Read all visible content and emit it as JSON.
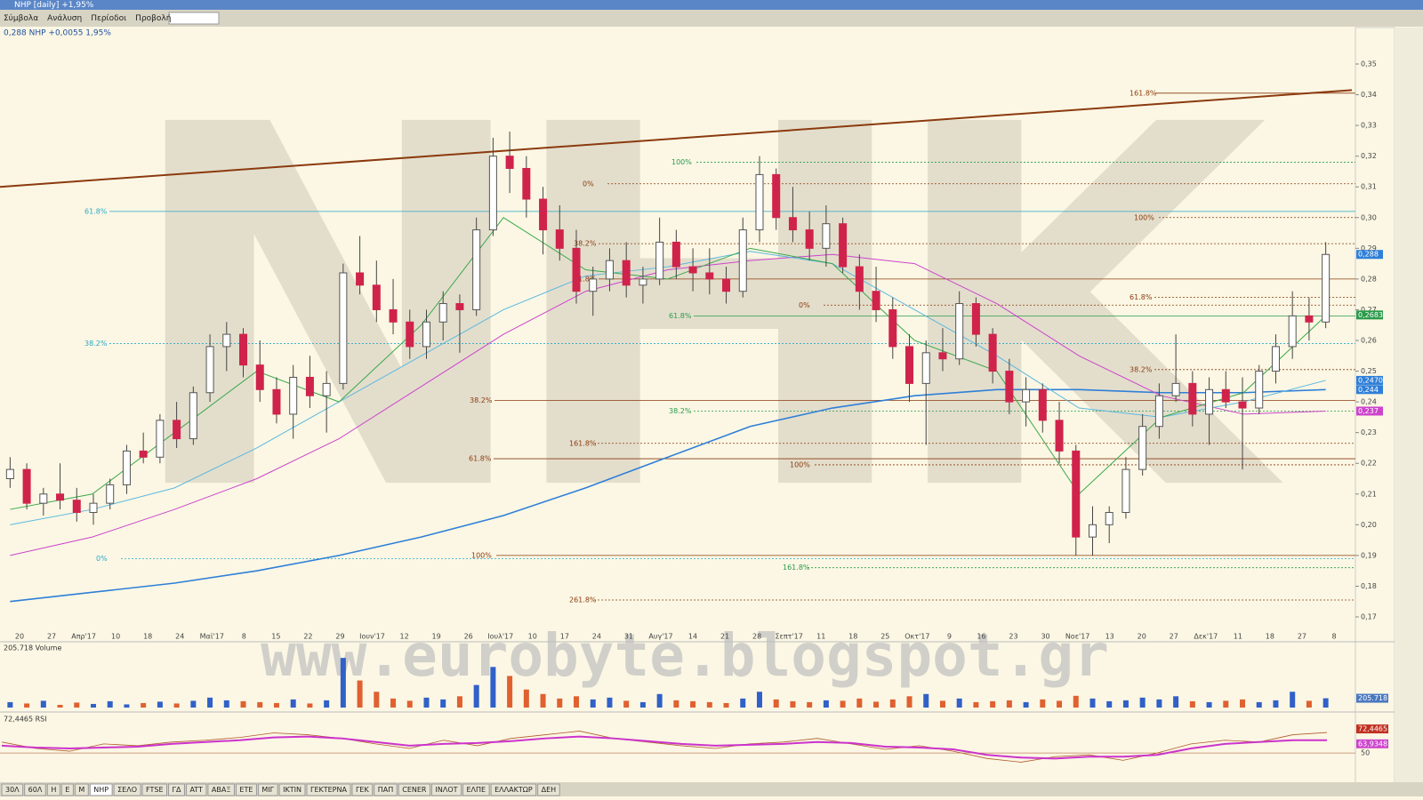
{
  "window": {
    "title": "NHP [daily] +1,95%"
  },
  "menu": [
    "Σύμβολα",
    "Ανάλυση",
    "Περίοδοι",
    "Προβολή"
  ],
  "chart_data": {
    "type": "candlestick",
    "header": "0,288 NHP +0,0055 1,95%",
    "watermark_logo": "NHK",
    "watermark_url": "www.eurobyte.blogspot.gr",
    "x_labels": [
      "20",
      "27",
      "Απρ'17",
      "10",
      "18",
      "24",
      "Μαϊ'17",
      "8",
      "15",
      "22",
      "29",
      "Ιουν'17",
      "12",
      "19",
      "26",
      "Ιουλ'17",
      "10",
      "17",
      "24",
      "31",
      "Αυγ'17",
      "14",
      "21",
      "28",
      "Σεπτ'17",
      "11",
      "18",
      "25",
      "Οκτ'17",
      "9",
      "16",
      "23",
      "30",
      "Νοε'17",
      "13",
      "20",
      "27",
      "Δεκ'17",
      "11",
      "18",
      "27",
      "8"
    ],
    "ylim": [
      0.17,
      0.35
    ],
    "yticks": [
      {
        "value": 0.17,
        "label": "0,17"
      },
      {
        "value": 0.18,
        "label": "0,18"
      },
      {
        "value": 0.19,
        "label": "0,19"
      },
      {
        "value": 0.2,
        "label": "0,20"
      },
      {
        "value": 0.21,
        "label": "0,21"
      },
      {
        "value": 0.22,
        "label": "0,22"
      },
      {
        "value": 0.23,
        "label": "0,23"
      },
      {
        "value": 0.24,
        "label": "0,24"
      },
      {
        "value": 0.25,
        "label": "0,25"
      },
      {
        "value": 0.26,
        "label": "0,26"
      },
      {
        "value": 0.27,
        "label": "0,27"
      },
      {
        "value": 0.28,
        "label": "0,28"
      },
      {
        "value": 0.29,
        "label": "0,29"
      },
      {
        "value": 0.3,
        "label": "0,30"
      },
      {
        "value": 0.31,
        "label": "0,31"
      },
      {
        "value": 0.32,
        "label": "0,32"
      },
      {
        "value": 0.33,
        "label": "0,33"
      },
      {
        "value": 0.34,
        "label": "0,34"
      },
      {
        "value": 0.35,
        "label": "0,35"
      }
    ],
    "up_color": "#ffffff",
    "down_color": "#d0234b",
    "candles": [
      [
        0.215,
        0.222,
        0.212,
        0.218
      ],
      [
        0.218,
        0.22,
        0.205,
        0.207
      ],
      [
        0.207,
        0.212,
        0.203,
        0.21
      ],
      [
        0.21,
        0.22,
        0.205,
        0.208
      ],
      [
        0.208,
        0.212,
        0.201,
        0.204
      ],
      [
        0.204,
        0.21,
        0.2,
        0.207
      ],
      [
        0.207,
        0.215,
        0.205,
        0.213
      ],
      [
        0.213,
        0.226,
        0.21,
        0.224
      ],
      [
        0.224,
        0.23,
        0.22,
        0.222
      ],
      [
        0.222,
        0.236,
        0.22,
        0.234
      ],
      [
        0.234,
        0.24,
        0.225,
        0.228
      ],
      [
        0.228,
        0.245,
        0.226,
        0.243
      ],
      [
        0.243,
        0.262,
        0.24,
        0.258
      ],
      [
        0.258,
        0.266,
        0.25,
        0.262
      ],
      [
        0.262,
        0.264,
        0.248,
        0.252
      ],
      [
        0.252,
        0.26,
        0.24,
        0.244
      ],
      [
        0.244,
        0.248,
        0.233,
        0.236
      ],
      [
        0.236,
        0.252,
        0.228,
        0.248
      ],
      [
        0.248,
        0.255,
        0.238,
        0.242
      ],
      [
        0.242,
        0.25,
        0.23,
        0.246
      ],
      [
        0.246,
        0.285,
        0.244,
        0.282
      ],
      [
        0.282,
        0.294,
        0.275,
        0.278
      ],
      [
        0.278,
        0.286,
        0.266,
        0.27
      ],
      [
        0.27,
        0.28,
        0.262,
        0.266
      ],
      [
        0.266,
        0.27,
        0.254,
        0.258
      ],
      [
        0.258,
        0.27,
        0.254,
        0.266
      ],
      [
        0.266,
        0.276,
        0.26,
        0.272
      ],
      [
        0.272,
        0.275,
        0.256,
        0.27
      ],
      [
        0.27,
        0.3,
        0.268,
        0.296
      ],
      [
        0.296,
        0.326,
        0.294,
        0.32
      ],
      [
        0.32,
        0.328,
        0.308,
        0.316
      ],
      [
        0.316,
        0.32,
        0.3,
        0.306
      ],
      [
        0.306,
        0.31,
        0.288,
        0.296
      ],
      [
        0.296,
        0.304,
        0.286,
        0.29
      ],
      [
        0.29,
        0.296,
        0.272,
        0.276
      ],
      [
        0.276,
        0.284,
        0.268,
        0.28
      ],
      [
        0.28,
        0.29,
        0.276,
        0.286
      ],
      [
        0.286,
        0.292,
        0.274,
        0.278
      ],
      [
        0.278,
        0.284,
        0.272,
        0.28
      ],
      [
        0.28,
        0.3,
        0.278,
        0.292
      ],
      [
        0.292,
        0.296,
        0.28,
        0.284
      ],
      [
        0.284,
        0.29,
        0.276,
        0.282
      ],
      [
        0.282,
        0.29,
        0.275,
        0.28
      ],
      [
        0.28,
        0.284,
        0.272,
        0.276
      ],
      [
        0.276,
        0.3,
        0.274,
        0.296
      ],
      [
        0.296,
        0.32,
        0.292,
        0.314
      ],
      [
        0.314,
        0.316,
        0.296,
        0.3
      ],
      [
        0.3,
        0.31,
        0.292,
        0.296
      ],
      [
        0.296,
        0.302,
        0.286,
        0.29
      ],
      [
        0.29,
        0.304,
        0.284,
        0.298
      ],
      [
        0.298,
        0.3,
        0.282,
        0.284
      ],
      [
        0.284,
        0.288,
        0.27,
        0.276
      ],
      [
        0.276,
        0.284,
        0.266,
        0.27
      ],
      [
        0.27,
        0.274,
        0.254,
        0.258
      ],
      [
        0.258,
        0.262,
        0.24,
        0.246
      ],
      [
        0.246,
        0.26,
        0.226,
        0.256
      ],
      [
        0.256,
        0.264,
        0.25,
        0.254
      ],
      [
        0.254,
        0.276,
        0.252,
        0.272
      ],
      [
        0.272,
        0.274,
        0.258,
        0.262
      ],
      [
        0.262,
        0.264,
        0.246,
        0.25
      ],
      [
        0.25,
        0.254,
        0.236,
        0.24
      ],
      [
        0.24,
        0.248,
        0.232,
        0.244
      ],
      [
        0.244,
        0.246,
        0.23,
        0.234
      ],
      [
        0.234,
        0.24,
        0.22,
        0.224
      ],
      [
        0.224,
        0.226,
        0.19,
        0.196
      ],
      [
        0.196,
        0.206,
        0.19,
        0.2
      ],
      [
        0.2,
        0.206,
        0.194,
        0.204
      ],
      [
        0.204,
        0.222,
        0.202,
        0.218
      ],
      [
        0.218,
        0.236,
        0.216,
        0.232
      ],
      [
        0.232,
        0.246,
        0.228,
        0.242
      ],
      [
        0.242,
        0.262,
        0.24,
        0.246
      ],
      [
        0.246,
        0.25,
        0.232,
        0.236
      ],
      [
        0.236,
        0.248,
        0.226,
        0.244
      ],
      [
        0.244,
        0.25,
        0.238,
        0.24
      ],
      [
        0.24,
        0.248,
        0.218,
        0.238
      ],
      [
        0.238,
        0.252,
        0.236,
        0.25
      ],
      [
        0.25,
        0.262,
        0.246,
        0.258
      ],
      [
        0.258,
        0.276,
        0.254,
        0.268
      ],
      [
        0.268,
        0.274,
        0.26,
        0.266
      ],
      [
        0.266,
        0.292,
        0.264,
        0.288
      ]
    ],
    "averages": [
      {
        "color": "#2f7fd8",
        "values": [
          0.175,
          0.178,
          0.181,
          0.185,
          0.19,
          0.196,
          0.203,
          0.212,
          0.222,
          0.232,
          0.238,
          0.242,
          0.244,
          0.244,
          0.243,
          0.243,
          0.244
        ]
      },
      {
        "color": "#cc44cc",
        "values": [
          0.19,
          0.196,
          0.205,
          0.215,
          0.228,
          0.245,
          0.262,
          0.276,
          0.283,
          0.286,
          0.288,
          0.285,
          0.272,
          0.255,
          0.242,
          0.236,
          0.237
        ]
      },
      {
        "color": "#5bb8e0",
        "values": [
          0.2,
          0.205,
          0.212,
          0.225,
          0.24,
          0.255,
          0.27,
          0.281,
          0.284,
          0.289,
          0.285,
          0.27,
          0.255,
          0.238,
          0.235,
          0.24,
          0.247
        ]
      },
      {
        "color": "#3aa84a",
        "values": [
          0.205,
          0.21,
          0.23,
          0.25,
          0.24,
          0.265,
          0.3,
          0.283,
          0.28,
          0.29,
          0.285,
          0.26,
          0.25,
          0.21,
          0.235,
          0.243,
          0.268
        ]
      }
    ],
    "trend_line": {
      "color": "#8b3a0e",
      "values": [
        0.31,
        0.3415
      ]
    },
    "fib_levels": [
      {
        "label": "161.8%",
        "value": 0.3405,
        "color": "#8b3a0e"
      },
      {
        "label": "100%",
        "value": 0.318,
        "color": "#2a9a4a"
      },
      {
        "label": "0%",
        "value": 0.311,
        "color": "#8b3a0e"
      },
      {
        "label": "61.8%",
        "value": 0.302,
        "color": "#2aa8c8"
      },
      {
        "label": "100%",
        "value": 0.3,
        "color": "#8b3a0e"
      },
      {
        "label": "38.2%",
        "value": 0.2915,
        "color": "#8b3a0e"
      },
      {
        "label": "61.8%",
        "value": 0.28,
        "color": "#8b3a0e"
      },
      {
        "label": "61.8%",
        "value": 0.274,
        "color": "#8b3a0e"
      },
      {
        "label": "0%",
        "value": 0.2715,
        "color": "#8b3a0e"
      },
      {
        "label": "61.8%",
        "value": 0.268,
        "color": "#2a9a4a"
      },
      {
        "label": "38.2%",
        "value": 0.259,
        "color": "#2aa8c8"
      },
      {
        "label": "38.2%",
        "value": 0.2505,
        "color": "#8b3a0e"
      },
      {
        "label": "38.2%",
        "value": 0.2405,
        "color": "#8b3a0e"
      },
      {
        "label": "38.2%",
        "value": 0.237,
        "color": "#2a9a4a"
      },
      {
        "label": "161.8%",
        "value": 0.2265,
        "color": "#8b3a0e"
      },
      {
        "label": "61.8%",
        "value": 0.2215,
        "color": "#8b3a0e"
      },
      {
        "label": "100%",
        "value": 0.2195,
        "color": "#8b3a0e"
      },
      {
        "label": "0%",
        "value": 0.189,
        "color": "#2aa8c8"
      },
      {
        "label": "100%",
        "value": 0.19,
        "color": "#8b3a0e"
      },
      {
        "label": "161.8%",
        "value": 0.186,
        "color": "#2a9a4a"
      },
      {
        "label": "261.8%",
        "value": 0.1755,
        "color": "#8b3a0e"
      }
    ],
    "price_tags": [
      {
        "label": "0,288",
        "value": 0.288,
        "color": "#2f7fd8"
      },
      {
        "label": "0,2683",
        "value": 0.2683,
        "color": "#2a9a4a"
      },
      {
        "label": "0,2470",
        "value": 0.247,
        "color": "#2f7fd8"
      },
      {
        "label": "0,244",
        "value": 0.244,
        "color": "#2f7fd8"
      },
      {
        "label": "0,237",
        "value": 0.237,
        "color": "#cc44cc"
      }
    ],
    "volume_header": "205.718 Volume",
    "volume_tag": {
      "label": "205.718",
      "value": 205718
    },
    "volume_ylim": [
      0,
      1300000
    ],
    "volume": [
      120000,
      90000,
      150000,
      60000,
      110000,
      80000,
      140000,
      70000,
      100000,
      130000,
      90000,
      150000,
      220000,
      160000,
      140000,
      120000,
      100000,
      180000,
      90000,
      160000,
      1100000,
      600000,
      350000,
      200000,
      150000,
      220000,
      180000,
      250000,
      500000,
      900000,
      700000,
      400000,
      300000,
      200000,
      250000,
      180000,
      220000,
      150000,
      120000,
      300000,
      160000,
      140000,
      120000,
      100000,
      200000,
      350000,
      180000,
      140000,
      120000,
      160000,
      150000,
      200000,
      130000,
      180000,
      250000,
      300000,
      150000,
      200000,
      120000,
      140000,
      160000,
      120000,
      180000,
      150000,
      260000,
      200000,
      140000,
      160000,
      220000,
      180000,
      250000,
      140000,
      120000,
      150000,
      180000,
      120000,
      160000,
      350000,
      150000,
      205718
    ],
    "rsi_header": "72,4465 RSI",
    "rsi_ylim": [
      20,
      90
    ],
    "rsi_ticks": [
      50
    ],
    "rsi_tags": [
      {
        "label": "72,4465",
        "value": 72.4465,
        "color": "#c03020"
      },
      {
        "label": "63,9348",
        "value": 63.9348,
        "color": "#cc44cc"
      }
    ],
    "rsi": [
      62,
      55,
      52,
      60,
      58,
      62,
      64,
      67,
      72,
      70,
      66,
      60,
      55,
      64,
      58,
      66,
      70,
      74,
      66,
      62,
      58,
      55,
      60,
      62,
      66,
      60,
      54,
      58,
      52,
      44,
      40,
      46,
      48,
      42,
      50,
      60,
      64,
      62,
      70,
      72.4465
    ],
    "rsi_signal": [
      58,
      56,
      55,
      56,
      57,
      60,
      62,
      64,
      67,
      68,
      66,
      62,
      58,
      60,
      61,
      63,
      66,
      68,
      66,
      63,
      60,
      58,
      59,
      60,
      62,
      61,
      57,
      56,
      54,
      48,
      45,
      44,
      46,
      46,
      48,
      55,
      60,
      62,
      64,
      63.9348
    ]
  },
  "tabs": [
    "30Λ",
    "60Λ",
    "H",
    "E",
    "M",
    "NHP",
    "ΣΕΛΟ",
    "FTSE",
    "ΓΔ",
    "ATT",
    "ΑΒΑΞ",
    "ΕΤΕ",
    "ΜΙΓ",
    "ΙΚΤΙΝ",
    "ΓΕΚΤΕΡΝΑ",
    "ΓΕΚ",
    "ΠΑΠ",
    "CENER",
    "ΙΝΛΟΤ",
    "ΕΛΠΕ",
    "ΕΛΛΑΚΤΩΡ",
    "ΔΕΗ"
  ]
}
